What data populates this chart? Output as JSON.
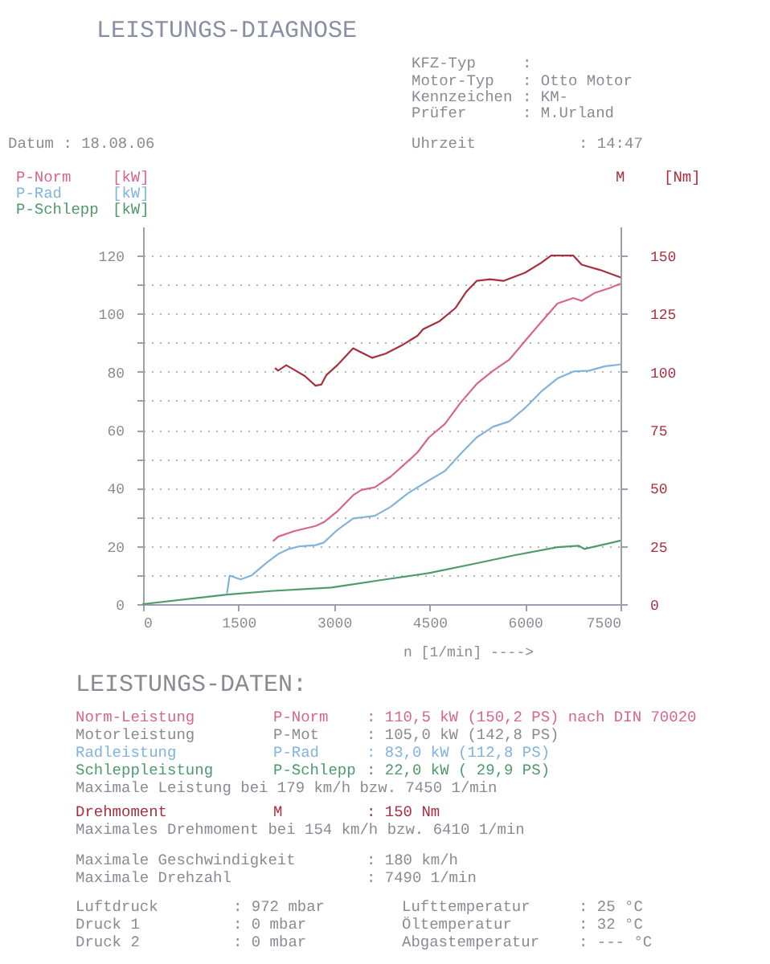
{
  "chart_data": {
    "type": "line",
    "title": "LEISTUNGS-DIAGNOSE",
    "xlabel": "n [1/min] ---->",
    "ylabel": "[kW]",
    "y2label": "[Nm]",
    "xlim": [
      0,
      7500
    ],
    "xticks": [
      0,
      1500,
      3000,
      4500,
      6000,
      7500
    ],
    "ylim": [
      0,
      130
    ],
    "yticks": [
      0,
      {
        "value": 10,
        "label": null
      },
      20,
      {
        "value": 30,
        "label": null
      },
      40,
      {
        "value": 50,
        "label": null
      },
      60,
      {
        "value": 70,
        "label": null
      },
      80,
      {
        "value": 90,
        "label": null
      },
      100,
      {
        "value": 110,
        "label": null
      },
      120
    ],
    "y2lim": [
      0,
      162.5
    ],
    "y2ticks": [
      0,
      25,
      50,
      75,
      100,
      125,
      150
    ],
    "grid": "y",
    "legend": "top",
    "line_style": "solid",
    "series": [
      {
        "name": "P-Norm",
        "color": "#d8668a",
        "x": [
          2050,
          2120,
          2370,
          2710,
          2840,
          3050,
          3300,
          3430,
          3640,
          3890,
          4150,
          4310,
          4490,
          4740,
          4990,
          5240,
          5500,
          5750,
          6000,
          6250,
          6510,
          6760,
          6890,
          7100,
          7350,
          7490
        ],
        "values": [
          21.8,
          23.2,
          25.1,
          26.9,
          28.2,
          31.9,
          37.5,
          39.3,
          40.2,
          43.9,
          49,
          52.2,
          57.4,
          62,
          69.4,
          75.8,
          80.4,
          84.1,
          90.6,
          97,
          103.5,
          105.4,
          104.4,
          107.2,
          109,
          110.2
        ]
      },
      {
        "name": "P-Rad",
        "color": "#80b4dc",
        "x": [
          1320,
          1360,
          1530,
          1700,
          1950,
          2120,
          2290,
          2460,
          2710,
          2840,
          3050,
          3300,
          3640,
          3890,
          4150,
          4490,
          4740,
          4990,
          5240,
          5500,
          5750,
          6000,
          6250,
          6510,
          6760,
          7010,
          7260,
          7490
        ],
        "values": [
          4,
          9.8,
          8.5,
          9.8,
          14.4,
          17.2,
          19,
          19.9,
          20.3,
          21.2,
          25.5,
          29.5,
          30.4,
          33.5,
          38,
          42.6,
          45.8,
          51.8,
          57.4,
          61.1,
          62.9,
          67.5,
          73.1,
          77.7,
          80.1,
          80.4,
          81.9,
          82.5
        ]
      },
      {
        "name": "P-Schlepp",
        "color": "#4f9a6c",
        "x": [
          0,
          1320,
          2000,
          2960,
          3810,
          4310,
          4490,
          5160,
          5830,
          6510,
          6840,
          6930,
          7490
        ],
        "values": [
          0,
          3.3,
          4.5,
          5.7,
          8.5,
          10.1,
          10.7,
          13.7,
          16.8,
          19.6,
          20.1,
          19,
          21.8
        ]
      },
      {
        "name": "M",
        "color": "#a8303e",
        "axis": "y2",
        "x": [
          2080,
          2120,
          2250,
          2370,
          2540,
          2710,
          2800,
          2880,
          3050,
          3300,
          3430,
          3600,
          3810,
          4060,
          4310,
          4400,
          4660,
          4910,
          5080,
          5240,
          5450,
          5660,
          6000,
          6250,
          6410,
          6760,
          6890,
          7180,
          7490
        ],
        "values": [
          101.4,
          100.5,
          102.8,
          100.9,
          98.2,
          94,
          94.5,
          98.6,
          102.8,
          110.1,
          108.3,
          106,
          107.8,
          111.3,
          115.5,
          118.3,
          121.8,
          127.5,
          134.5,
          139.1,
          139.8,
          139.1,
          142.6,
          146.8,
          150,
          150,
          146.1,
          143.8,
          140.7
        ]
      }
    ],
    "annotations": [
      "KFZ-Typ",
      ":",
      "Motor-Typ",
      ": Otto Motor",
      "Kennzeichen",
      ": KM-",
      "Prüfer",
      ": M.Urland",
      "Datum : 18.08.06",
      "Uhrzeit",
      ": 14:47",
      "LEISTUNGS-DATEN:",
      "Norm-Leistung",
      "P-Norm",
      ": 110,5 kW (150,2 PS) nach DIN 70020",
      "Motorleistung",
      "P-Mot",
      ": 105,0 kW (142,8 PS)",
      "Radleistung",
      "P-Rad",
      ": 83,0 kW (112,8 PS)",
      "Schleppleistung",
      "P-Schlepp",
      ": 22,0 kW ( 29,9 PS)",
      "Maximale Leistung bei 179 km/h bzw. 7450 1/min",
      "Drehmoment",
      "M",
      ": 150 Nm",
      "Maximales Drehmoment bei 154 km/h bzw. 6410 1/min",
      "Maximale Geschwindigkeit",
      ": 180 km/h",
      "Maximale Drehzahl",
      ": 7490 1/min",
      "Luftdruck",
      ": 972 mbar",
      "Lufttemperatur",
      ": 25 °C",
      "Druck 1",
      ": 0 mbar",
      "Öltemperatur",
      ": 32 °C",
      "Druck 2",
      ": 0 mbar",
      "Abgastemperatur",
      ": --- °C"
    ]
  }
}
